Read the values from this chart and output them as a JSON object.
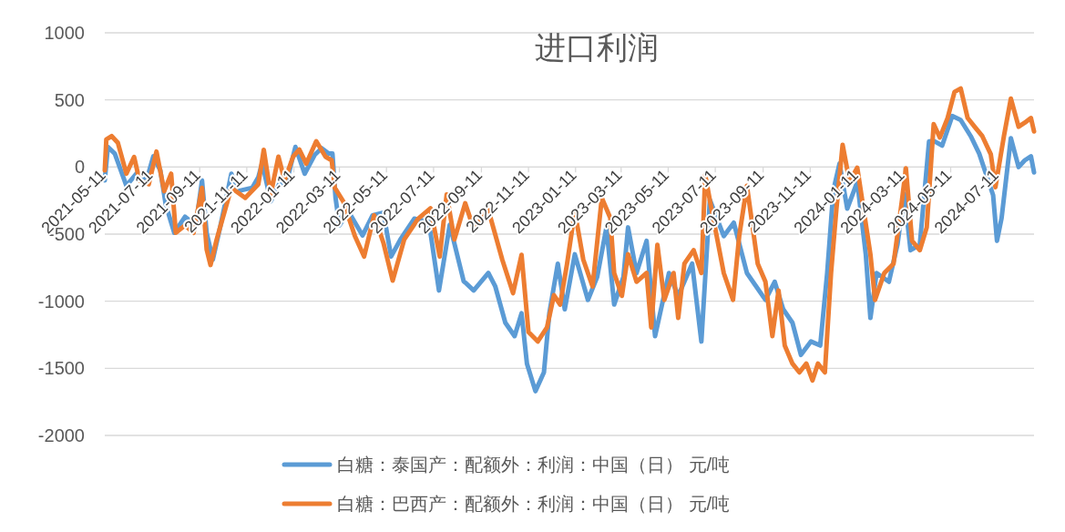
{
  "chart_data": {
    "type": "line",
    "title": "进口利润",
    "ylim": [
      -2000,
      1000
    ],
    "yticks": [
      -2000,
      -1500,
      -1000,
      -500,
      0,
      500,
      1000
    ],
    "xlim": [
      "2021-05-11",
      "2024-08-27"
    ],
    "xticks": [
      "2021-05-11",
      "2021-07-11",
      "2021-09-11",
      "2021-11-11",
      "2022-01-11",
      "2022-03-11",
      "2022-05-11",
      "2022-07-11",
      "2022-09-11",
      "2022-11-11",
      "2023-01-11",
      "2023-03-11",
      "2023-05-11",
      "2023-07-11",
      "2023-09-11",
      "2023-11-11",
      "2024-01-11",
      "2024-03-11",
      "2024-05-11",
      "2024-07-11"
    ],
    "grid": "y",
    "legend": "bottom",
    "line_style": "solid",
    "marker": "none",
    "series": [
      {
        "name": "白糖：泰国产：配额外：利润：中国（日） 元/吨",
        "color": "#5b9bd5",
        "x": [
          "2021-05-11",
          "2021-05-15",
          "2021-05-24",
          "2021-06-08",
          "2021-06-21",
          "2021-07-04",
          "2021-07-13",
          "2021-07-22",
          "2021-07-29",
          "2021-08-09",
          "2021-08-23",
          "2021-09-06",
          "2021-09-14",
          "2021-09-20",
          "2021-09-28",
          "2021-10-08",
          "2021-10-22",
          "2021-10-30",
          "2021-11-18",
          "2021-11-26",
          "2021-12-01",
          "2021-12-12",
          "2021-12-23",
          "2022-01-01",
          "2022-01-13",
          "2022-01-25",
          "2022-02-07",
          "2022-02-16",
          "2022-02-25",
          "2022-03-02",
          "2022-03-06",
          "2022-03-11",
          "2022-03-23",
          "2022-04-10",
          "2022-04-23",
          "2022-05-07",
          "2022-05-17",
          "2022-05-29",
          "2022-06-16",
          "2022-07-05",
          "2022-07-18",
          "2022-08-01",
          "2022-08-19",
          "2022-09-01",
          "2022-09-20",
          "2022-09-29",
          "2022-10-12",
          "2022-10-24",
          "2022-11-02",
          "2022-11-09",
          "2022-11-20",
          "2022-12-01",
          "2022-12-08",
          "2022-12-19",
          "2022-12-28",
          "2023-01-10",
          "2023-01-27",
          "2023-02-08",
          "2023-02-20",
          "2023-03-02",
          "2023-03-14",
          "2023-03-20",
          "2023-03-31",
          "2023-04-13",
          "2023-04-24",
          "2023-05-12",
          "2023-05-24",
          "2023-06-11",
          "2023-06-23",
          "2023-07-04",
          "2023-07-22",
          "2023-08-04",
          "2023-08-21",
          "2023-09-14",
          "2023-09-26",
          "2023-10-07",
          "2023-10-19",
          "2023-10-30",
          "2023-11-12",
          "2023-11-24",
          "2023-12-03",
          "2023-12-11",
          "2023-12-19",
          "2023-12-29",
          "2024-01-11",
          "2024-01-22",
          "2024-01-28",
          "2024-02-05",
          "2024-02-21",
          "2024-03-03",
          "2024-03-12",
          "2024-03-20",
          "2024-04-01",
          "2024-04-13",
          "2024-04-19",
          "2024-04-30",
          "2024-05-13",
          "2024-05-24",
          "2024-06-06",
          "2024-06-17",
          "2024-07-05",
          "2024-07-10",
          "2024-07-16",
          "2024-07-28",
          "2024-08-07",
          "2024-08-15",
          "2024-08-23",
          "2024-08-27"
        ],
        "values": [
          -100,
          150,
          100,
          -140,
          -50,
          -100,
          80,
          -25,
          -280,
          -490,
          -370,
          -435,
          -100,
          -490,
          -690,
          -435,
          -50,
          -180,
          -155,
          -75,
          30,
          -256,
          -128,
          -128,
          150,
          -50,
          90,
          140,
          100,
          100,
          -230,
          -435,
          -333,
          -510,
          -360,
          -340,
          -667,
          -540,
          -385,
          -410,
          -920,
          -430,
          -850,
          -920,
          -790,
          -890,
          -1160,
          -1260,
          -1090,
          -1465,
          -1670,
          -1530,
          -1090,
          -720,
          -1060,
          -650,
          -990,
          -820,
          -450,
          -1025,
          -820,
          -450,
          -790,
          -550,
          -1260,
          -790,
          -960,
          -720,
          -1300,
          -245,
          -515,
          -415,
          -790,
          -990,
          -855,
          -1060,
          -1160,
          -1400,
          -1300,
          -1330,
          -790,
          -175,
          25,
          -310,
          -110,
          -650,
          -1125,
          -790,
          -855,
          -580,
          -200,
          -620,
          -580,
          190,
          195,
          160,
          380,
          350,
          230,
          100,
          -210,
          -550,
          -380,
          215,
          0,
          50,
          80,
          -40
        ]
      },
      {
        "name": "白糖：巴西产：配额外：利润：中国（日） 元/吨",
        "color": "#ed7d31",
        "x": [
          "2021-05-11",
          "2021-05-13",
          "2021-05-20",
          "2021-05-28",
          "2021-06-08",
          "2021-06-18",
          "2021-06-25",
          "2021-07-07",
          "2021-07-17",
          "2021-07-27",
          "2021-08-05",
          "2021-08-11",
          "2021-08-23",
          "2021-09-03",
          "2021-09-14",
          "2021-09-20",
          "2021-09-25",
          "2021-10-03",
          "2021-10-22",
          "2021-11-09",
          "2021-11-26",
          "2021-12-03",
          "2021-12-12",
          "2021-12-22",
          "2021-12-30",
          "2022-01-10",
          "2022-01-18",
          "2022-01-27",
          "2022-02-09",
          "2022-02-21",
          "2022-03-01",
          "2022-03-05",
          "2022-03-16",
          "2022-03-31",
          "2022-04-12",
          "2022-04-25",
          "2022-05-07",
          "2022-05-19",
          "2022-06-03",
          "2022-06-21",
          "2022-07-07",
          "2022-07-19",
          "2022-07-28",
          "2022-08-07",
          "2022-08-21",
          "2022-09-01",
          "2022-09-20",
          "2022-10-08",
          "2022-10-22",
          "2022-11-02",
          "2022-11-11",
          "2022-11-23",
          "2022-12-05",
          "2022-12-14",
          "2022-12-22",
          "2022-12-31",
          "2023-01-10",
          "2023-01-21",
          "2023-02-02",
          "2023-02-14",
          "2023-02-25",
          "2023-03-02",
          "2023-03-12",
          "2023-03-20",
          "2023-03-31",
          "2023-04-13",
          "2023-04-19",
          "2023-04-27",
          "2023-05-06",
          "2023-05-18",
          "2023-05-24",
          "2023-06-01",
          "2023-06-13",
          "2023-06-23",
          "2023-06-28",
          "2023-07-06",
          "2023-07-22",
          "2023-08-03",
          "2023-08-11",
          "2023-08-21",
          "2023-09-04",
          "2023-09-14",
          "2023-09-23",
          "2023-10-01",
          "2023-10-09",
          "2023-10-19",
          "2023-10-28",
          "2023-11-06",
          "2023-11-14",
          "2023-11-21",
          "2023-11-30",
          "2023-12-08",
          "2023-12-15",
          "2023-12-23",
          "2024-01-01",
          "2024-01-11",
          "2024-01-28",
          "2024-02-03",
          "2024-02-15",
          "2024-02-27",
          "2024-03-09",
          "2024-03-14",
          "2024-03-22",
          "2024-04-01",
          "2024-04-10",
          "2024-04-19",
          "2024-04-27",
          "2024-05-07",
          "2024-05-16",
          "2024-05-24",
          "2024-06-02",
          "2024-06-11",
          "2024-06-21",
          "2024-07-02",
          "2024-07-08",
          "2024-07-19",
          "2024-07-28",
          "2024-08-07",
          "2024-08-15",
          "2024-08-23",
          "2024-08-27"
        ],
        "values": [
          -25,
          205,
          230,
          180,
          -50,
          75,
          -100,
          -128,
          115,
          -180,
          -50,
          -490,
          -435,
          -490,
          -155,
          -615,
          -730,
          -540,
          -155,
          -230,
          -128,
          128,
          -205,
          77,
          -100,
          77,
          130,
          25,
          192,
          77,
          50,
          -155,
          -256,
          -513,
          -667,
          -360,
          -564,
          -846,
          -540,
          -385,
          -308,
          -667,
          -205,
          -540,
          -270,
          -460,
          -320,
          -690,
          -940,
          -654,
          -1230,
          -1300,
          -1195,
          -955,
          -1025,
          -720,
          -330,
          -690,
          -890,
          -230,
          -380,
          -790,
          -960,
          -650,
          -855,
          -790,
          -1195,
          -580,
          -990,
          -790,
          -1125,
          -720,
          -620,
          -790,
          -60,
          -310,
          -790,
          -990,
          -515,
          -140,
          -720,
          -855,
          -1260,
          -920,
          -1330,
          -1465,
          -1530,
          -1465,
          -1590,
          -1465,
          -1530,
          -790,
          -310,
          165,
          -110,
          -5,
          -650,
          -990,
          -790,
          -720,
          -245,
          -10,
          -550,
          -620,
          -450,
          320,
          220,
          365,
          560,
          585,
          365,
          300,
          230,
          95,
          -150,
          230,
          510,
          300,
          330,
          365,
          265
        ]
      }
    ]
  }
}
